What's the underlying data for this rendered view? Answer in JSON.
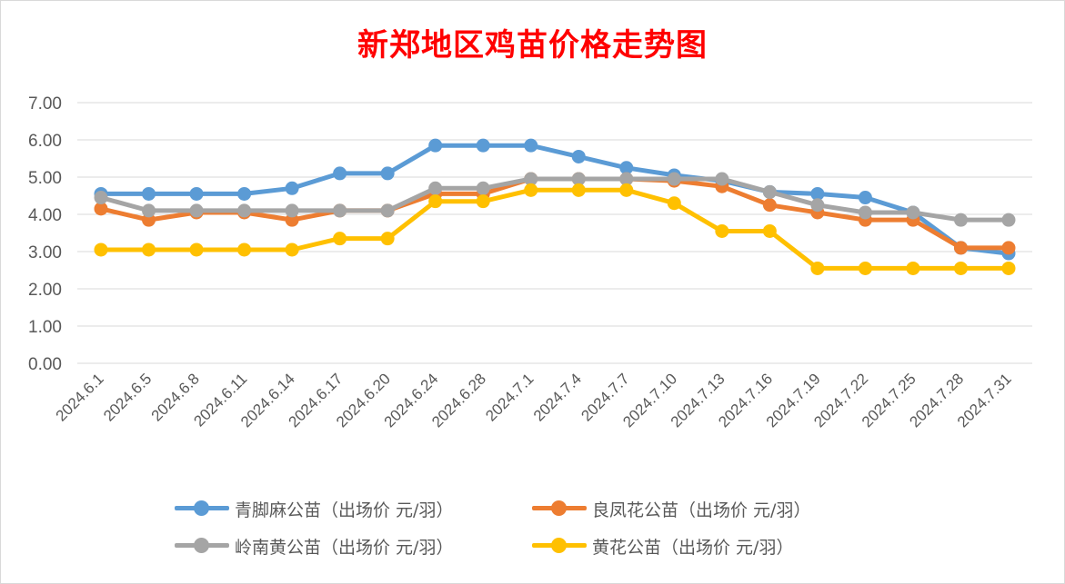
{
  "chart_data": {
    "type": "line",
    "title": "新郑地区鸡苗价格走势图",
    "xlabel": "",
    "ylabel": "",
    "ylim": [
      0,
      7
    ],
    "yticks": [
      "0.00",
      "1.00",
      "2.00",
      "3.00",
      "4.00",
      "5.00",
      "6.00",
      "7.00"
    ],
    "grid": "horizontal",
    "legend_position": "bottom",
    "categories": [
      "2024.6.1",
      "2024.6.5",
      "2024.6.8",
      "2024.6.11",
      "2024.6.14",
      "2024.6.17",
      "2024.6.20",
      "2024.6.24",
      "2024.6.28",
      "2024.7.1",
      "2024.7.4",
      "2024.7.7",
      "2024.7.10",
      "2024.7.13",
      "2024.7.16",
      "2024.7.19",
      "2024.7.22",
      "2024.7.25",
      "2024.7.28",
      "2024.7.31"
    ],
    "series": [
      {
        "name": "青脚麻公苗（出场价 元/羽）",
        "color": "#5b9bd5",
        "values": [
          4.55,
          4.55,
          4.55,
          4.55,
          4.7,
          5.1,
          5.1,
          5.85,
          5.85,
          5.85,
          5.55,
          5.25,
          5.05,
          4.9,
          4.6,
          4.55,
          4.45,
          4.05,
          3.1,
          2.95
        ]
      },
      {
        "name": "良凤花公苗（出场价 元/羽）",
        "color": "#ed7d31",
        "values": [
          4.15,
          3.85,
          4.05,
          4.05,
          3.85,
          4.1,
          4.1,
          4.55,
          4.55,
          4.95,
          4.95,
          4.95,
          4.9,
          4.75,
          4.25,
          4.05,
          3.85,
          3.85,
          3.1,
          3.1
        ]
      },
      {
        "name": "岭南黄公苗（出场价 元/羽）",
        "color": "#a5a5a5",
        "values": [
          4.45,
          4.1,
          4.1,
          4.1,
          4.1,
          4.1,
          4.1,
          4.7,
          4.7,
          4.95,
          4.95,
          4.95,
          4.95,
          4.95,
          4.6,
          4.25,
          4.05,
          4.05,
          3.85,
          3.85
        ]
      },
      {
        "name": "黄花公苗（出场价 元/羽）",
        "color": "#ffc000",
        "values": [
          3.05,
          3.05,
          3.05,
          3.05,
          3.05,
          3.35,
          3.35,
          4.35,
          4.35,
          4.65,
          4.65,
          4.65,
          4.3,
          3.55,
          3.55,
          2.55,
          2.55,
          2.55,
          2.55,
          2.55
        ]
      }
    ]
  }
}
